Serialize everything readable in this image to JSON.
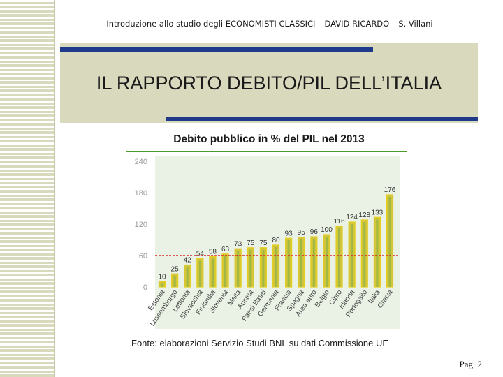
{
  "header": {
    "text": "Introduzione allo studio degli ECONOMISTI CLASSICI – DAVID RICARDO – S. Villani"
  },
  "slide": {
    "title": "IL RAPPORTO DEBITO/PIL DELL’ITALIA",
    "page_number": "Pag. 2"
  },
  "colors": {
    "band": "#d9d9bd",
    "accent_blue": "#1f3a8a",
    "bar_fill": "#d3c63a",
    "bar_edge": "#e5ce1e",
    "bar_core": "#8fb248",
    "reference_line": "#d72a2a",
    "plot_bg": "#eaf1e5",
    "rule_green": "#4a9a2c"
  },
  "chart_data": {
    "type": "bar",
    "title": "Debito pubblico in % del PIL nel 2013",
    "categories": [
      "Estonia",
      "Lussemburgo",
      "Lettonia",
      "Slovacchia",
      "Finlandia",
      "Slovenia",
      "Malta",
      "Austria",
      "Paesi Bassi",
      "Germania",
      "Francia",
      "Spagna",
      "Area euro",
      "Belgio",
      "Cipro",
      "Irlanda",
      "Portogallo",
      "Italia",
      "Grecia"
    ],
    "values": [
      10,
      25,
      42,
      54,
      58,
      63,
      73,
      75,
      75,
      80,
      93,
      95,
      96,
      100,
      116,
      124,
      128,
      133,
      176
    ],
    "value_labels": [
      "10",
      "25",
      "42",
      "54",
      "58",
      "63",
      "73",
      "75",
      "75",
      "80",
      "93",
      "95",
      "96",
      "100",
      "116",
      "124",
      "128",
      "133",
      "176"
    ],
    "yticks": [
      "0",
      "60",
      "120",
      "180",
      "240"
    ],
    "ylim": [
      0,
      240
    ],
    "reference_line": 60,
    "xlabel": "",
    "ylabel": "",
    "source": "Fonte: elaborazioni Servizio Studi BNL su dati Commissione UE"
  }
}
